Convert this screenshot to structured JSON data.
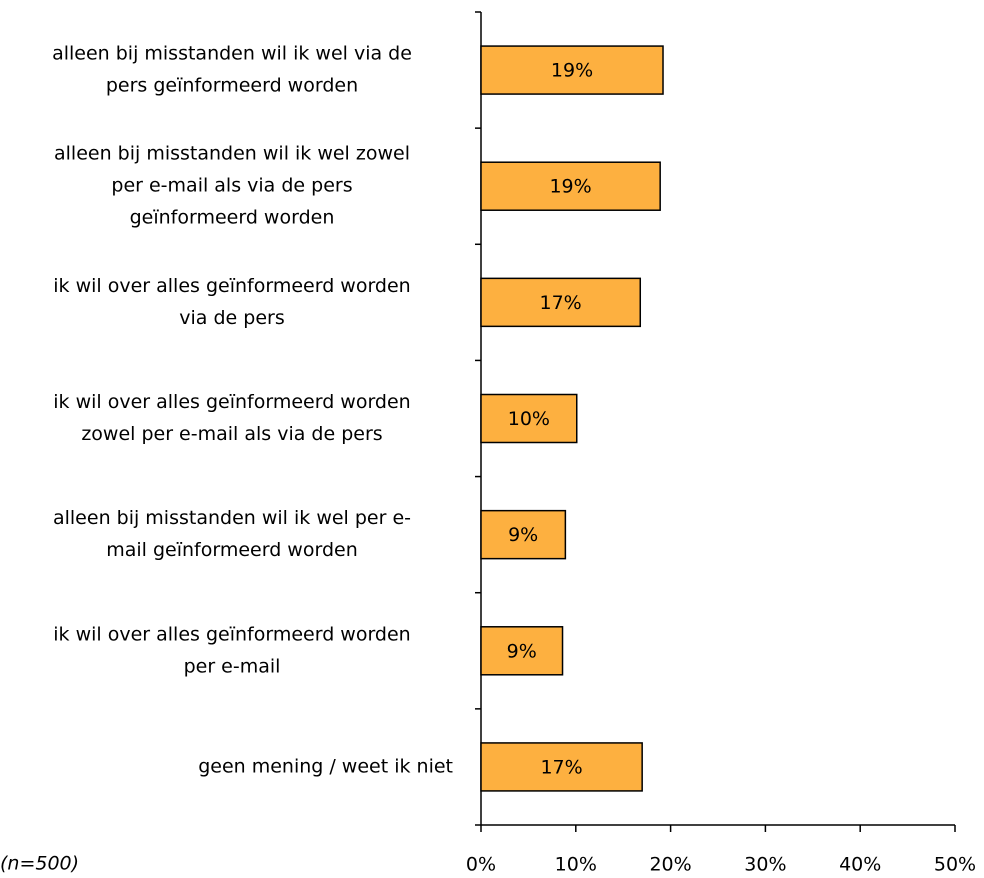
{
  "chart_data": {
    "type": "barh",
    "categories": [
      [
        "alleen bij misstanden wil ik wel via de",
        "pers geïnformeerd worden"
      ],
      [
        "alleen bij misstanden wil ik wel zowel",
        "per e-mail als via de pers",
        "geïnformeerd worden"
      ],
      [
        "ik wil over alles geïnformeerd worden",
        "via de pers"
      ],
      [
        "ik wil over alles geïnformeerd worden",
        "zowel per e-mail als via de pers"
      ],
      [
        "alleen bij misstanden wil ik wel per e-",
        "mail geïnformeerd worden"
      ],
      [
        "ik wil over alles geïnformeerd worden",
        "per e-mail"
      ],
      [
        "geen mening / weet ik niet"
      ]
    ],
    "values": [
      19.2,
      18.9,
      16.8,
      10.1,
      8.9,
      8.6,
      17.0
    ],
    "value_labels": [
      "19%",
      "19%",
      "17%",
      "10%",
      "9%",
      "9%",
      "17%"
    ],
    "color": "#fdb040",
    "xlim": [
      0,
      50
    ],
    "xticks": [
      {
        "value": 0,
        "label": "0%"
      },
      {
        "value": 10,
        "label": "10%"
      },
      {
        "value": 20,
        "label": "20%"
      },
      {
        "value": 30,
        "label": "30%"
      },
      {
        "value": 40,
        "label": "40%"
      },
      {
        "value": 50,
        "label": "50%"
      }
    ],
    "annotation": "(n=500)"
  }
}
